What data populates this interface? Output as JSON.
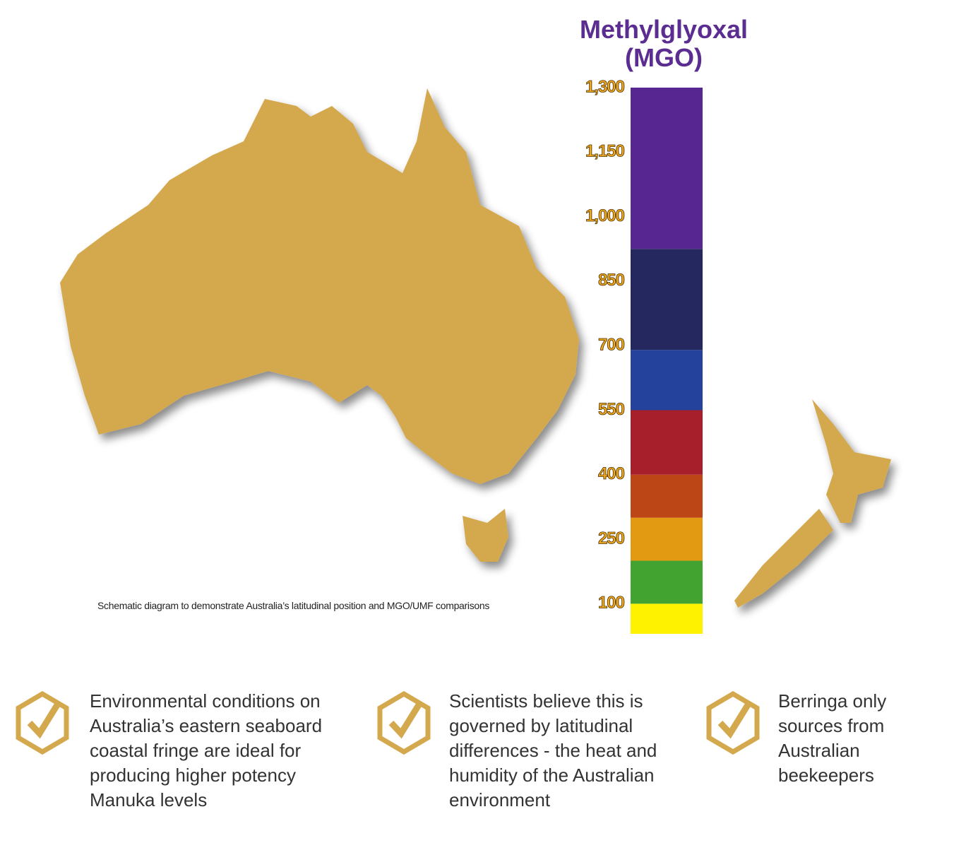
{
  "chart_data": {
    "type": "scale",
    "title": "Methylglyoxal (MGO)",
    "ylim": [
      30,
      1300
    ],
    "yticks": [
      {
        "value": 1300,
        "label": "1,300"
      },
      {
        "value": 1150,
        "label": "1,150"
      },
      {
        "value": 1000,
        "label": "1,000"
      },
      850,
      700,
      550,
      400,
      250,
      100
    ],
    "bands": [
      {
        "from": 30,
        "to": 100,
        "color": "#fff200"
      },
      {
        "from": 100,
        "to": 200,
        "color": "#43a330"
      },
      {
        "from": 200,
        "to": 300,
        "color": "#e29a13"
      },
      {
        "from": 300,
        "to": 400,
        "color": "#bd4616"
      },
      {
        "from": 400,
        "to": 550,
        "color": "#a81f2c"
      },
      {
        "from": 550,
        "to": 690,
        "color": "#24419b"
      },
      {
        "from": 690,
        "to": 925,
        "color": "#24285e"
      },
      {
        "from": 925,
        "to": 1300,
        "color": "#582690"
      }
    ]
  },
  "caption": "Schematic diagram to demonstrate Australia’s latitudinal position and MGO/UMF comparisons",
  "points": [
    "Environmental conditions on Australia’s eastern seaboard coastal fringe are ideal for producing higher potency Manuka levels",
    "Scientists believe this is governed by latitudinal differences - the heat and humidity of the Australian environment",
    "Berringa only sources from Australian beekeepers"
  ]
}
